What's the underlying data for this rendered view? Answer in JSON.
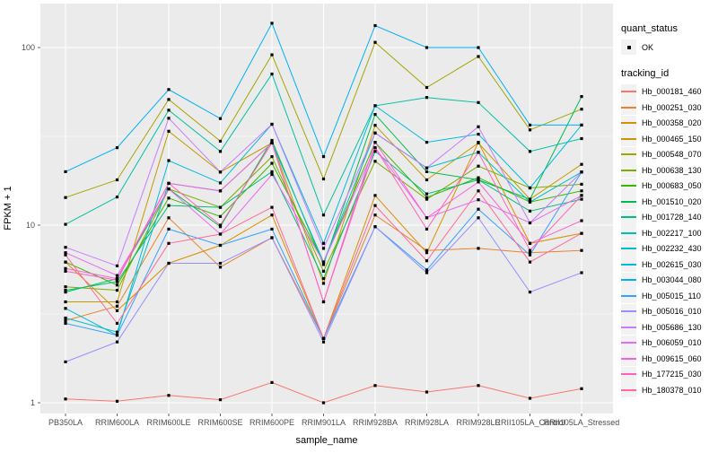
{
  "colors": {
    "panel_bg": "#EBEBEB",
    "grid": "#FFFFFF",
    "point": "#000000",
    "tick_label": "#4D4D4D",
    "tick_mark": "#333333",
    "legend_key_bg": "#F2F2F2"
  },
  "legend": {
    "quant_status": {
      "title": "quant_status",
      "items": [
        {
          "label": "OK",
          "marker": "black-point"
        }
      ]
    },
    "tracking_id": {
      "title": "tracking_id"
    }
  },
  "chart_data": {
    "type": "line",
    "title": "",
    "xlabel": "sample_name",
    "ylabel": "FPKM + 1",
    "y_scale": "log10",
    "y_ticks": [
      1,
      10,
      100
    ],
    "y_minor_ticks": [
      3.162,
      31.62
    ],
    "ylim": [
      0.85,
      175
    ],
    "grid": true,
    "legend_position": "right",
    "point_marker": "black-square",
    "categories": [
      "PB350LA",
      "RRIM600LA",
      "RRIM600LE",
      "RRIM600SE",
      "RRIM600PE",
      "RRIM901LA",
      "RRIM928BA",
      "RRIM928LA",
      "RRIM928LE",
      "RRII105LA_Control",
      "RRII105LA_Stressed"
    ],
    "series": [
      {
        "name": "Hb_000181_460",
        "color": "#F8766D",
        "values": [
          1.05,
          1.02,
          1.1,
          1.04,
          1.3,
          1.0,
          1.25,
          1.15,
          1.25,
          1.06,
          1.2
        ]
      },
      {
        "name": "Hb_000251_030",
        "color": "#EA8331",
        "values": [
          2.9,
          3.5,
          11.0,
          5.8,
          8.5,
          2.3,
          11.4,
          7.2,
          7.4,
          7.0,
          7.2
        ]
      },
      {
        "name": "Hb_000358_020",
        "color": "#D89000",
        "values": [
          6.2,
          3.3,
          6.1,
          7.7,
          11.4,
          2.3,
          14.7,
          7.0,
          29.3,
          7.9,
          9.0
        ]
      },
      {
        "name": "Hb_000465_150",
        "color": "#C49A00",
        "values": [
          3.7,
          3.7,
          33.8,
          19.9,
          29.0,
          4.7,
          36.5,
          18.0,
          29.0,
          14.0,
          22.0
        ]
      },
      {
        "name": "Hb_000548_070",
        "color": "#A3A500",
        "values": [
          14.3,
          18.0,
          51.0,
          29.7,
          91.0,
          18.2,
          107.0,
          59.6,
          89.0,
          34.4,
          45.0
        ]
      },
      {
        "name": "Hb_000638_130",
        "color": "#7CAE00",
        "values": [
          4.5,
          4.3,
          16.0,
          12.6,
          24.3,
          5.5,
          22.9,
          14.0,
          21.5,
          16.2,
          17.0
        ]
      },
      {
        "name": "Hb_000683_050",
        "color": "#39B600",
        "values": [
          6.2,
          4.6,
          14.2,
          11.2,
          22.3,
          6.2,
          29.3,
          14.3,
          18.5,
          13.5,
          15.6
        ]
      },
      {
        "name": "Hb_001510_020",
        "color": "#00BB4E",
        "values": [
          4.2,
          5.0,
          16.0,
          9.8,
          30.0,
          6.0,
          42.0,
          20.0,
          18.0,
          14.0,
          53.0
        ]
      },
      {
        "name": "Hb_001728_140",
        "color": "#00BF7D",
        "values": [
          4.3,
          4.8,
          12.9,
          12.6,
          20.0,
          5.0,
          26.0,
          15.0,
          18.0,
          12.0,
          14.0
        ]
      },
      {
        "name": "Hb_002217_100",
        "color": "#00C1A3",
        "values": [
          10.1,
          14.4,
          44.4,
          26.0,
          71.0,
          11.4,
          47.0,
          52.3,
          49.0,
          26.0,
          30.7
        ]
      },
      {
        "name": "Hb_002232_430",
        "color": "#00BFC4",
        "values": [
          3.0,
          2.5,
          17.2,
          15.6,
          29.0,
          6.2,
          33.0,
          21.0,
          25.7,
          13.5,
          19.9
        ]
      },
      {
        "name": "Hb_002615_030",
        "color": "#00BAE0",
        "values": [
          3.4,
          2.4,
          23.1,
          17.3,
          37.0,
          7.9,
          47.0,
          29.3,
          32.5,
          16.2,
          36.6
        ]
      },
      {
        "name": "Hb_003044_080",
        "color": "#00B0F6",
        "values": [
          20.0,
          27.3,
          58.0,
          39.8,
          137.0,
          24.3,
          133.0,
          100.0,
          100.0,
          36.6,
          36.6
        ]
      },
      {
        "name": "Hb_005015_110",
        "color": "#35A2FF",
        "values": [
          2.8,
          2.4,
          9.5,
          7.7,
          9.5,
          2.3,
          9.8,
          5.6,
          12.3,
          6.8,
          19.9
        ]
      },
      {
        "name": "Hb_005016_010",
        "color": "#9590FF",
        "values": [
          1.7,
          2.2,
          6.1,
          6.1,
          8.5,
          2.2,
          9.8,
          5.4,
          11.0,
          4.2,
          5.4
        ]
      },
      {
        "name": "Hb_005686_130",
        "color": "#C77CFF",
        "values": [
          7.5,
          5.9,
          40.0,
          19.9,
          37.0,
          7.4,
          33.0,
          21.0,
          35.8,
          10.3,
          19.9
        ]
      },
      {
        "name": "Hb_006059_010",
        "color": "#E76BF3",
        "values": [
          7.0,
          5.2,
          16.0,
          8.9,
          19.3,
          6.2,
          27.3,
          11.0,
          13.9,
          10.3,
          14.7
        ]
      },
      {
        "name": "Hb_009615_060",
        "color": "#FA62DB",
        "values": [
          5.7,
          5.0,
          17.2,
          15.6,
          29.0,
          3.7,
          29.3,
          11.0,
          17.5,
          7.9,
          10.6
        ]
      },
      {
        "name": "Hb_177215_030",
        "color": "#FF62BC",
        "values": [
          5.5,
          4.9,
          17.2,
          10.0,
          29.0,
          3.7,
          27.3,
          9.5,
          25.7,
          7.2,
          14.7
        ]
      },
      {
        "name": "Hb_180378_010",
        "color": "#FF6A98",
        "values": [
          6.8,
          2.8,
          7.9,
          8.9,
          12.6,
          2.3,
          12.9,
          6.3,
          15.6,
          6.2,
          9.0
        ]
      }
    ]
  }
}
